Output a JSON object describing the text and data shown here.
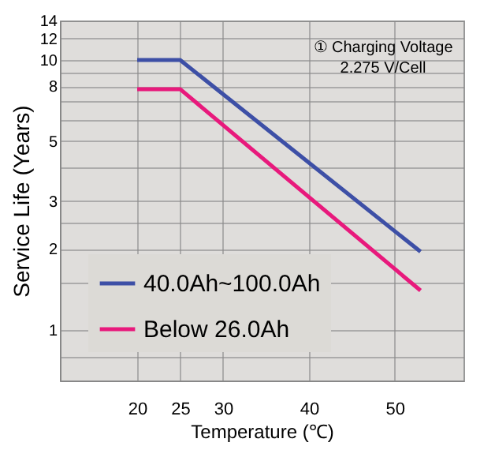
{
  "chart_data": {
    "type": "line",
    "xlabel": "Temperature (℃)",
    "ylabel": "Service Life (Years)",
    "series": [
      {
        "name": "40.0Ah~100.0Ah",
        "color": "#3d4fa6",
        "x": [
          20,
          25,
          53
        ],
        "values": [
          10,
          10,
          1.95
        ]
      },
      {
        "name": "Below 26.0Ah",
        "color": "#e8197c",
        "x": [
          20,
          25,
          53
        ],
        "values": [
          7.8,
          7.8,
          1.4
        ]
      }
    ],
    "xlim": [
      11,
      58
    ],
    "xticks": [
      20,
      25,
      30,
      40,
      50
    ],
    "ylim": [
      0.65,
      14
    ],
    "yticks": [
      {
        "value": 0.8,
        "label": null
      },
      1,
      {
        "value": 1.5,
        "label": null
      },
      2,
      {
        "value": 2.5,
        "label": null
      },
      3,
      {
        "value": 4,
        "label": null
      },
      5,
      {
        "value": 6,
        "label": null
      },
      {
        "value": 7,
        "label": null
      },
      8,
      {
        "value": 9,
        "label": null
      },
      10,
      12,
      14
    ],
    "log": "y",
    "grid": true,
    "legend": "bottom left",
    "marker": "none",
    "line_style": "solid",
    "annotations": [
      "① Charging Voltage\n2.275 V/Cell"
    ]
  }
}
